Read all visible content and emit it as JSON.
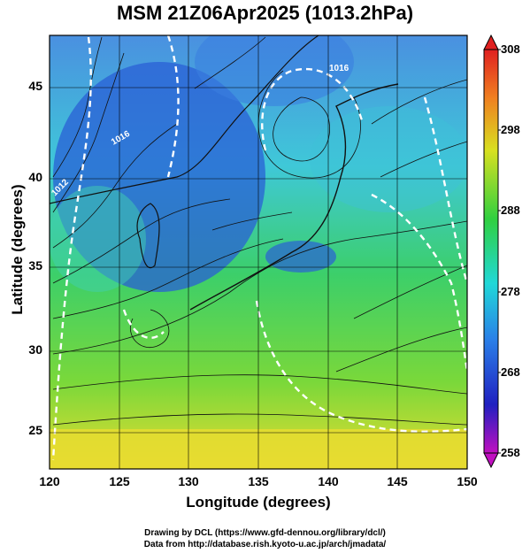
{
  "title": "MSM 21Z06Apr2025 (1013.2hPa)",
  "chart_data": {
    "type": "heatmap",
    "title": "MSM 21Z06Apr2025 (1013.2hPa)",
    "xlabel": "Longitude (degrees)",
    "ylabel": "Latitude  (degrees)",
    "xlim": [
      120,
      150
    ],
    "ylim": [
      22.4,
      47.6
    ],
    "xticks": [
      "120",
      "125",
      "130",
      "135",
      "140",
      "145",
      "150"
    ],
    "yticks": [
      "25",
      "30",
      "35",
      "40",
      "45"
    ],
    "colorbar": {
      "min": 258,
      "max": 308,
      "ticks": [
        "308",
        "298",
        "288",
        "278",
        "268",
        "258"
      ],
      "colormap": "rainbow (magenta-blue-cyan-green-yellow-red)"
    },
    "overlay": "streamlines (wind) and white dashed contours",
    "contour_labels": [
      "1016",
      "1016",
      "1012"
    ],
    "grid": true
  },
  "credit": {
    "line1": "Drawing by DCL (https://www.gfd-dennou.org/library/dcl/)",
    "line2": "Data from http://database.rish.kyoto-u.ac.jp/arch/jmadata/"
  },
  "colors": {
    "cold": "#2a5fd6",
    "cool": "#29c9d9",
    "mid": "#3fd64a",
    "warm": "#e6e020",
    "land": "#1a1a1a"
  }
}
